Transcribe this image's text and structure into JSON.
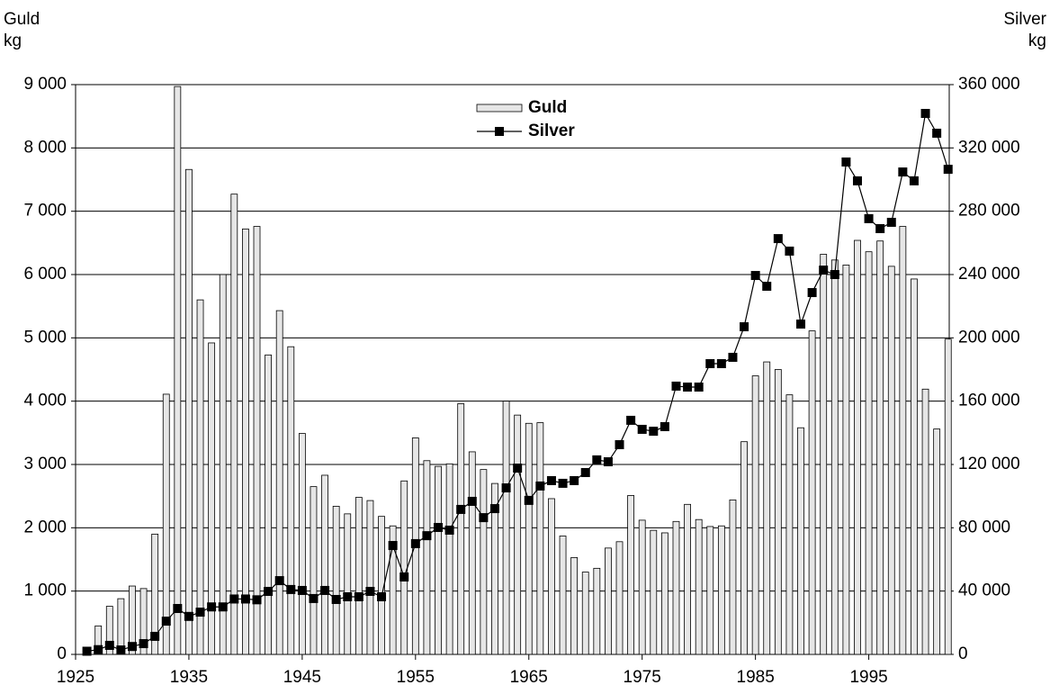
{
  "chart_data": {
    "type": "bar-line",
    "y_label": "Guld kg",
    "y2_label": "Silver kg",
    "x": [
      1926,
      1927,
      1928,
      1929,
      1930,
      1931,
      1932,
      1933,
      1934,
      1935,
      1936,
      1937,
      1938,
      1939,
      1940,
      1941,
      1942,
      1943,
      1944,
      1945,
      1946,
      1947,
      1948,
      1949,
      1950,
      1951,
      1952,
      1953,
      1954,
      1955,
      1956,
      1957,
      1958,
      1959,
      1960,
      1961,
      1962,
      1963,
      1964,
      1965,
      1966,
      1967,
      1968,
      1969,
      1970,
      1971,
      1972,
      1973,
      1974,
      1975,
      1976,
      1977,
      1978,
      1979,
      1980,
      1981,
      1982,
      1983,
      1984,
      1985,
      1986,
      1987,
      1988,
      1989,
      1990,
      1991,
      1992,
      1993,
      1994,
      1995,
      1996,
      1997,
      1998,
      1999,
      2000,
      2001,
      2002
    ],
    "xlim": [
      1925,
      2002.1
    ],
    "xticks": [
      1925,
      1935,
      1945,
      1955,
      1965,
      1975,
      1985,
      1995
    ],
    "ylim": [
      0,
      9000
    ],
    "yticks": [
      0,
      {
        "value": 1000,
        "label": "1 000"
      },
      {
        "value": 2000,
        "label": "2 000"
      },
      {
        "value": 3000,
        "label": "3 000"
      },
      {
        "value": 4000,
        "label": "4 000"
      },
      {
        "value": 5000,
        "label": "5 000"
      },
      {
        "value": 6000,
        "label": "6 000"
      },
      {
        "value": 7000,
        "label": "7 000"
      },
      {
        "value": 8000,
        "label": "8 000"
      },
      {
        "value": 9000,
        "label": "9 000"
      }
    ],
    "y2lim": [
      0,
      360000
    ],
    "y2ticks": [
      0,
      {
        "value": 40000,
        "label": "40 000"
      },
      {
        "value": 80000,
        "label": "80 000"
      },
      {
        "value": 120000,
        "label": "120 000"
      },
      {
        "value": 160000,
        "label": "160 000"
      },
      {
        "value": 200000,
        "label": "200 000"
      },
      {
        "value": 240000,
        "label": "240 000"
      },
      {
        "value": 280000,
        "label": "280 000"
      },
      {
        "value": 320000,
        "label": "320 000"
      },
      {
        "value": 360000,
        "label": "360 000"
      }
    ],
    "grid": true,
    "series": [
      {
        "name": "Guld",
        "type": "bar",
        "color": "#e6e6e6",
        "axis": "y",
        "values": [
          40,
          450,
          760,
          880,
          1080,
          1040,
          1900,
          4110,
          8970,
          7660,
          5600,
          4920,
          6000,
          7270,
          6720,
          6760,
          4730,
          5430,
          4860,
          3490,
          2650,
          2830,
          2340,
          2220,
          2480,
          2430,
          2180,
          2030,
          2740,
          3420,
          3060,
          2970,
          3010,
          3960,
          3200,
          2920,
          2700,
          4000,
          3780,
          3650,
          3660,
          2460,
          1870,
          1530,
          1300,
          1360,
          1680,
          1780,
          2510,
          2120,
          1960,
          1920,
          2100,
          2370,
          2130,
          2020,
          2030,
          2440,
          3360,
          4400,
          4620,
          4500,
          4100,
          3580,
          5110,
          6320,
          6230,
          6150,
          6540,
          6360,
          6530,
          6130,
          6760,
          5930,
          4190,
          3560,
          4980
        ]
      },
      {
        "name": "Silver",
        "type": "line",
        "color": "#000000",
        "axis": "y2",
        "values": [
          2000,
          3000,
          5700,
          2800,
          5000,
          6800,
          11400,
          21000,
          29000,
          24000,
          26700,
          30000,
          30000,
          35000,
          35000,
          34500,
          39800,
          46600,
          41000,
          40400,
          35300,
          40400,
          34700,
          36400,
          36400,
          39800,
          36400,
          68800,
          48900,
          70000,
          75000,
          80200,
          78500,
          91600,
          96700,
          86400,
          92100,
          105200,
          117700,
          97300,
          106400,
          109800,
          108100,
          109800,
          114900,
          122900,
          121700,
          132500,
          147900,
          142200,
          141000,
          143900,
          169500,
          168900,
          168900,
          183700,
          183700,
          187700,
          207000,
          239400,
          232600,
          262700,
          254800,
          208700,
          228600,
          242800,
          240000,
          311100,
          299200,
          275300,
          269000,
          273000,
          304800,
          299200,
          341800,
          329300,
          306500
        ]
      }
    ]
  }
}
